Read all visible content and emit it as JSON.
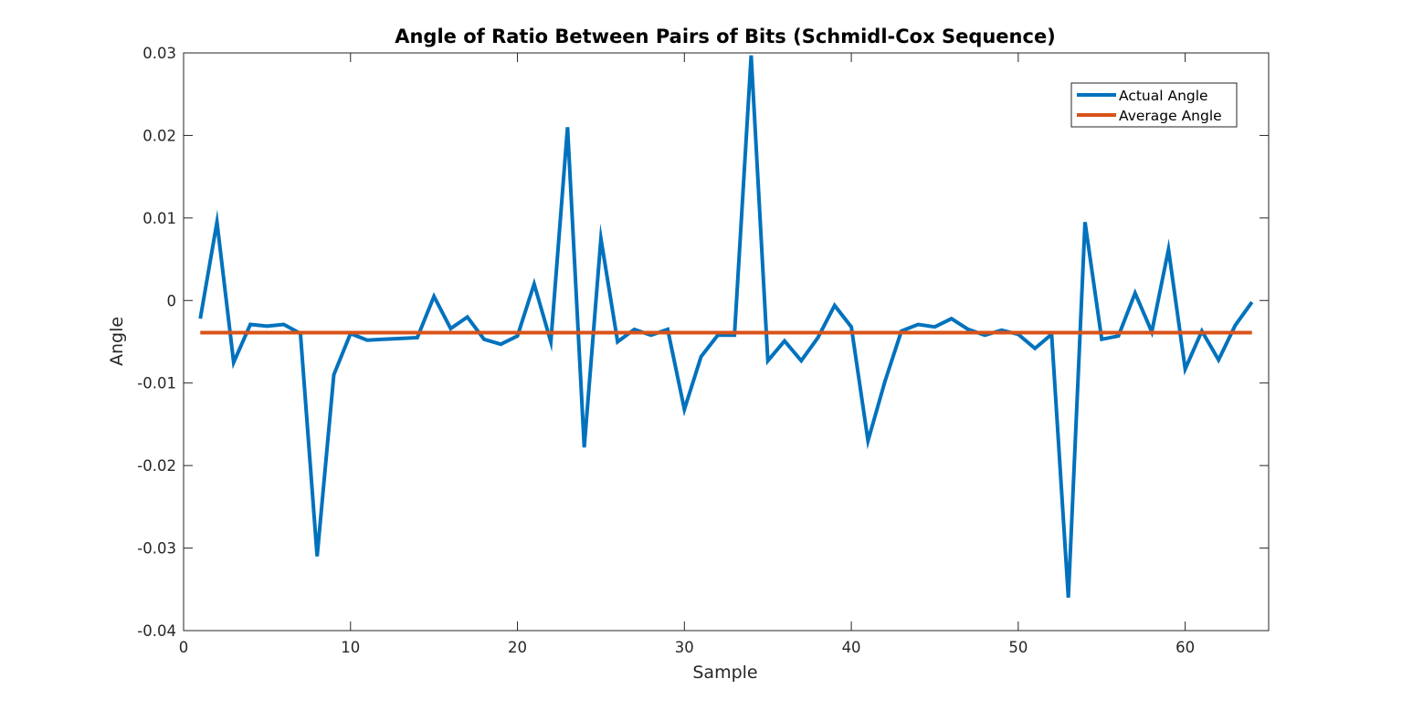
{
  "chart_data": {
    "type": "line",
    "title": "Angle of Ratio Between Pairs of Bits (Schmidl-Cox Sequence)",
    "xlabel": "Sample",
    "ylabel": "Angle",
    "xlim": [
      0,
      65
    ],
    "ylim": [
      -0.04,
      0.03
    ],
    "xticks": [
      0,
      10,
      20,
      30,
      40,
      50,
      60
    ],
    "xtick_labels": [
      "0",
      "10",
      "20",
      "30",
      "40",
      "50",
      "60"
    ],
    "yticks": [
      0.03,
      0.02,
      0.01,
      0,
      -0.01,
      -0.02,
      -0.03,
      -0.04
    ],
    "ytick_labels": [
      "0.03",
      "0.02",
      "0.01",
      "0",
      "-0.01",
      "-0.02",
      "-0.03",
      "-0.04"
    ],
    "grid": false,
    "legend_position": "top-right",
    "x": [
      1,
      2,
      3,
      4,
      5,
      6,
      7,
      8,
      9,
      10,
      11,
      12,
      13,
      14,
      15,
      16,
      17,
      18,
      19,
      20,
      21,
      22,
      23,
      24,
      25,
      26,
      27,
      28,
      29,
      30,
      31,
      32,
      33,
      34,
      35,
      36,
      37,
      38,
      39,
      40,
      41,
      42,
      43,
      44,
      45,
      46,
      47,
      48,
      49,
      50,
      51,
      52,
      53,
      54,
      55,
      56,
      57,
      58,
      59,
      60,
      61,
      62,
      63,
      64
    ],
    "series": [
      {
        "name": "Actual Angle",
        "color": "#0072BD",
        "values": [
          -0.0022,
          0.0095,
          -0.0075,
          -0.0029,
          -0.0031,
          -0.0029,
          -0.004,
          -0.031,
          -0.009,
          -0.004,
          -0.0048,
          -0.0047,
          -0.0046,
          -0.0045,
          0.0005,
          -0.0034,
          -0.002,
          -0.0047,
          -0.0053,
          -0.0043,
          0.002,
          -0.005,
          0.021,
          -0.0178,
          0.0075,
          -0.005,
          -0.0035,
          -0.0042,
          -0.0035,
          -0.0132,
          -0.0068,
          -0.0042,
          -0.0042,
          0.0297,
          -0.0073,
          -0.0049,
          -0.0073,
          -0.0045,
          -0.0006,
          -0.0032,
          -0.017,
          -0.0099,
          -0.0037,
          -0.0029,
          -0.0032,
          -0.0022,
          -0.0035,
          -0.0042,
          -0.0036,
          -0.0041,
          -0.0058,
          -0.0041,
          -0.036,
          0.0095,
          -0.0047,
          -0.0043,
          0.0009,
          -0.0038,
          0.0062,
          -0.0083,
          -0.0037,
          -0.0072,
          -0.003,
          -0.0002
        ]
      },
      {
        "name": "Average Angle",
        "color": "#D95319",
        "values": [
          -0.0039,
          -0.0039,
          -0.0039,
          -0.0039,
          -0.0039,
          -0.0039,
          -0.0039,
          -0.0039,
          -0.0039,
          -0.0039,
          -0.0039,
          -0.0039,
          -0.0039,
          -0.0039,
          -0.0039,
          -0.0039,
          -0.0039,
          -0.0039,
          -0.0039,
          -0.0039,
          -0.0039,
          -0.0039,
          -0.0039,
          -0.0039,
          -0.0039,
          -0.0039,
          -0.0039,
          -0.0039,
          -0.0039,
          -0.0039,
          -0.0039,
          -0.0039,
          -0.0039,
          -0.0039,
          -0.0039,
          -0.0039,
          -0.0039,
          -0.0039,
          -0.0039,
          -0.0039,
          -0.0039,
          -0.0039,
          -0.0039,
          -0.0039,
          -0.0039,
          -0.0039,
          -0.0039,
          -0.0039,
          -0.0039,
          -0.0039,
          -0.0039,
          -0.0039,
          -0.0039,
          -0.0039,
          -0.0039,
          -0.0039,
          -0.0039,
          -0.0039,
          -0.0039,
          -0.0039,
          -0.0039,
          -0.0039,
          -0.0039,
          -0.0039
        ]
      }
    ]
  }
}
